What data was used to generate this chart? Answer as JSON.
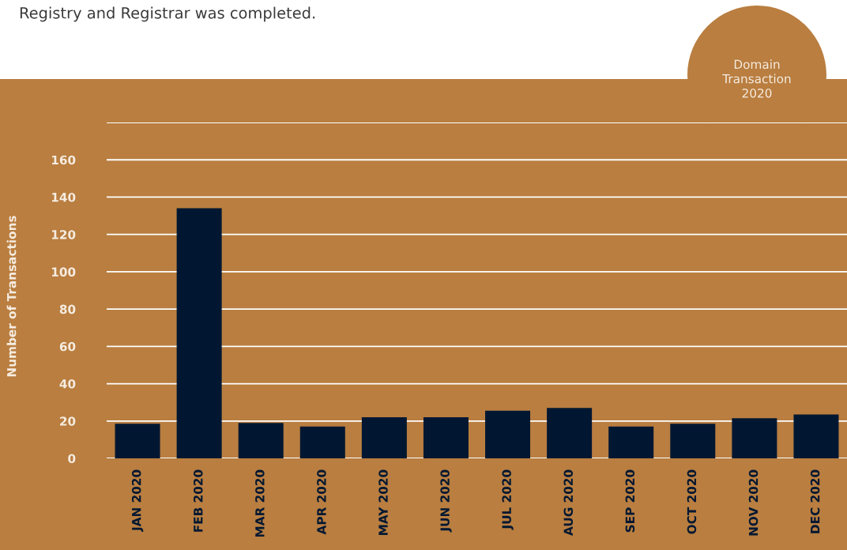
{
  "chart_data": {
    "type": "bar",
    "title": "Domain\nTransaction\n2020",
    "ylabel": "Number of Transactions",
    "annotations": [
      "Registry and Registrar was completed."
    ],
    "categories": [
      "JAN 2020",
      "FEB 2020",
      "MAR 2020",
      "APR 2020",
      "MAY 2020",
      "JUN 2020",
      "JUL 2020",
      "AUG 2020",
      "SEP 2020",
      "OCT 2020",
      "NOV 2020",
      "DEC 2020"
    ],
    "values": [
      18.5,
      134,
      19,
      17,
      22,
      22,
      25.5,
      27,
      17,
      18.5,
      21.5,
      23.5
    ],
    "color": "#011731",
    "ylim": [
      0,
      180
    ],
    "yticks": [
      0,
      20,
      40,
      60,
      80,
      100,
      120,
      140,
      160,
      {
        "value": 180,
        "label": null
      }
    ],
    "grid": "y"
  }
}
